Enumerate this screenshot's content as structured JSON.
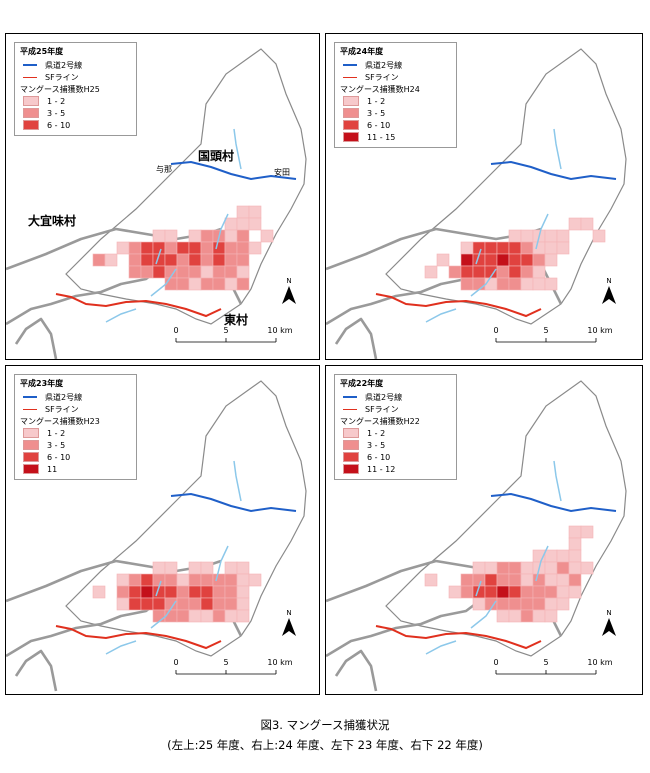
{
  "panels": [
    {
      "title": "平成25年度",
      "count_label": "マングース捕獲数H25",
      "classes": [
        {
          "label": "1 - 2",
          "color": "#f7c9cb"
        },
        {
          "label": "3 - 5",
          "color": "#ef8f8f"
        },
        {
          "label": "6 - 10",
          "color": "#e0423f"
        }
      ]
    },
    {
      "title": "平成24年度",
      "count_label": "マングース捕獲数H24",
      "classes": [
        {
          "label": "1 - 2",
          "color": "#f7c9cb"
        },
        {
          "label": "3 - 5",
          "color": "#ef8f8f"
        },
        {
          "label": "6 - 10",
          "color": "#e0423f"
        },
        {
          "label": "11 - 15",
          "color": "#c4101a"
        }
      ]
    },
    {
      "title": "平成23年度",
      "count_label": "マングース捕獲数H23",
      "classes": [
        {
          "label": "1 - 2",
          "color": "#f7c9cb"
        },
        {
          "label": "3 - 5",
          "color": "#ef8f8f"
        },
        {
          "label": "6 - 10",
          "color": "#e0423f"
        },
        {
          "label": "11",
          "color": "#c4101a"
        }
      ]
    },
    {
      "title": "平成22年度",
      "count_label": "マングース捕獲数H22",
      "classes": [
        {
          "label": "1 - 2",
          "color": "#f7c9cb"
        },
        {
          "label": "3 - 5",
          "color": "#ef8f8f"
        },
        {
          "label": "6 - 10",
          "color": "#e0423f"
        },
        {
          "label": "11 - 12",
          "color": "#c4101a"
        }
      ]
    }
  ],
  "legend_lines": {
    "road": {
      "label": "県道2号線",
      "color": "#1f5fc8"
    },
    "sf": {
      "label": "SFライン",
      "color": "#e0301e"
    }
  },
  "places": {
    "kunigami": "国頭村",
    "ogimi": "大宜味村",
    "higashi": "東村",
    "yona": "与那",
    "ada": "安田"
  },
  "scale": {
    "ticks": [
      "0",
      "5",
      "10 km"
    ]
  },
  "north": "N",
  "caption": {
    "line1": "図3. マングース捕獲状況",
    "line2": "(左上:25 年度、右上:24 年度、左下 23 年度、右下 22 年度)"
  }
}
